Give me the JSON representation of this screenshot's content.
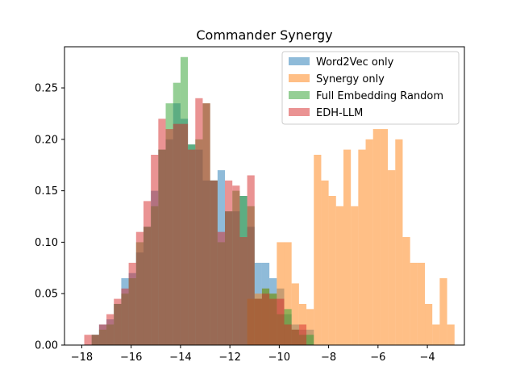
{
  "chart_data": {
    "type": "histogram",
    "title": "Commander Synergy",
    "xlabel": "",
    "ylabel": "",
    "xlim": [
      -18.7,
      -2.5
    ],
    "ylim": [
      0,
      0.29
    ],
    "xticks": [
      -18,
      -16,
      -14,
      -12,
      -10,
      -8,
      -6,
      -4
    ],
    "xtick_labels": [
      "−18",
      "−16",
      "−14",
      "−12",
      "−10",
      "−8",
      "−6",
      "−4"
    ],
    "yticks": [
      0.0,
      0.05,
      0.1,
      0.15,
      0.2,
      0.25
    ],
    "ytick_labels": [
      "0.00",
      "0.05",
      "0.10",
      "0.15",
      "0.20",
      "0.25"
    ],
    "grid": false,
    "legend_position": "top-right",
    "series": [
      {
        "name": "Word2Vec only",
        "color": "#1f77b4",
        "bins": [
          [
            -17.6,
            -17.3,
            0.01
          ],
          [
            -17.3,
            -17.0,
            0.02
          ],
          [
            -17.0,
            -16.7,
            0.025
          ],
          [
            -16.7,
            -16.4,
            0.04
          ],
          [
            -16.4,
            -16.1,
            0.065
          ],
          [
            -16.1,
            -15.8,
            0.07
          ],
          [
            -15.8,
            -15.5,
            0.09
          ],
          [
            -15.5,
            -15.2,
            0.115
          ],
          [
            -15.2,
            -14.9,
            0.15
          ],
          [
            -14.9,
            -14.6,
            0.19
          ],
          [
            -14.6,
            -14.3,
            0.2
          ],
          [
            -14.3,
            -14.0,
            0.235
          ],
          [
            -14.0,
            -13.7,
            0.22
          ],
          [
            -13.7,
            -13.4,
            0.195
          ],
          [
            -13.4,
            -13.1,
            0.19
          ],
          [
            -13.1,
            -12.8,
            0.16
          ],
          [
            -12.8,
            -12.5,
            0.16
          ],
          [
            -12.5,
            -12.2,
            0.17
          ],
          [
            -12.2,
            -11.9,
            0.13
          ],
          [
            -11.9,
            -11.6,
            0.13
          ],
          [
            -11.6,
            -11.3,
            0.145
          ],
          [
            -11.3,
            -11.0,
            0.115
          ],
          [
            -11.0,
            -10.7,
            0.08
          ],
          [
            -10.7,
            -10.4,
            0.08
          ],
          [
            -10.4,
            -10.1,
            0.065
          ],
          [
            -10.1,
            -9.8,
            0.055
          ],
          [
            -9.8,
            -9.5,
            0.03
          ],
          [
            -9.5,
            -9.2,
            0.02
          ],
          [
            -9.2,
            -8.9,
            0.015
          ],
          [
            -8.9,
            -8.6,
            0.015
          ]
        ]
      },
      {
        "name": "Synergy only",
        "color": "#ff7f0e",
        "bins": [
          [
            -11.3,
            -11.0,
            0.045
          ],
          [
            -11.0,
            -10.7,
            0.05
          ],
          [
            -10.7,
            -10.4,
            0.055
          ],
          [
            -10.4,
            -10.1,
            0.05
          ],
          [
            -10.1,
            -9.8,
            0.1
          ],
          [
            -9.8,
            -9.5,
            0.1
          ],
          [
            -9.5,
            -9.2,
            0.06
          ],
          [
            -9.2,
            -8.9,
            0.04
          ],
          [
            -8.9,
            -8.6,
            0.035
          ],
          [
            -8.6,
            -8.3,
            0.185
          ],
          [
            -8.3,
            -8.0,
            0.16
          ],
          [
            -8.0,
            -7.7,
            0.145
          ],
          [
            -7.7,
            -7.4,
            0.135
          ],
          [
            -7.4,
            -7.1,
            0.19
          ],
          [
            -7.1,
            -6.8,
            0.135
          ],
          [
            -6.8,
            -6.5,
            0.19
          ],
          [
            -6.5,
            -6.2,
            0.2
          ],
          [
            -6.2,
            -5.9,
            0.21
          ],
          [
            -5.9,
            -5.6,
            0.21
          ],
          [
            -5.6,
            -5.3,
            0.17
          ],
          [
            -5.3,
            -5.0,
            0.2
          ],
          [
            -5.0,
            -4.7,
            0.105
          ],
          [
            -4.7,
            -4.4,
            0.08
          ],
          [
            -4.4,
            -4.1,
            0.08
          ],
          [
            -4.1,
            -3.8,
            0.04
          ],
          [
            -3.8,
            -3.5,
            0.02
          ],
          [
            -3.5,
            -3.2,
            0.065
          ],
          [
            -3.2,
            -2.9,
            0.02
          ]
        ]
      },
      {
        "name": "Full Embedding Random",
        "color": "#2ca02c",
        "bins": [
          [
            -17.6,
            -17.3,
            0.01
          ],
          [
            -17.3,
            -17.0,
            0.015
          ],
          [
            -17.0,
            -16.7,
            0.02
          ],
          [
            -16.7,
            -16.4,
            0.04
          ],
          [
            -16.4,
            -16.1,
            0.05
          ],
          [
            -16.1,
            -15.8,
            0.065
          ],
          [
            -15.8,
            -15.5,
            0.1
          ],
          [
            -15.5,
            -15.2,
            0.115
          ],
          [
            -15.2,
            -14.9,
            0.135
          ],
          [
            -14.9,
            -14.6,
            0.19
          ],
          [
            -14.6,
            -14.3,
            0.235
          ],
          [
            -14.3,
            -14.0,
            0.255
          ],
          [
            -14.0,
            -13.7,
            0.28
          ],
          [
            -13.7,
            -13.4,
            0.195
          ],
          [
            -13.4,
            -13.1,
            0.2
          ],
          [
            -13.1,
            -12.8,
            0.235
          ],
          [
            -12.8,
            -12.5,
            0.16
          ],
          [
            -12.5,
            -12.2,
            0.1
          ],
          [
            -12.2,
            -11.9,
            0.13
          ],
          [
            -11.9,
            -11.6,
            0.15
          ],
          [
            -11.6,
            -11.3,
            0.145
          ],
          [
            -11.3,
            -11.0,
            0.135
          ],
          [
            -11.0,
            -10.7,
            0.045
          ],
          [
            -10.7,
            -10.4,
            0.055
          ],
          [
            -10.4,
            -10.1,
            0.05
          ],
          [
            -10.1,
            -9.8,
            0.03
          ],
          [
            -9.8,
            -9.5,
            0.035
          ],
          [
            -9.5,
            -9.2,
            0.015
          ],
          [
            -9.2,
            -8.9,
            0.01
          ],
          [
            -8.9,
            -8.6,
            0.01
          ]
        ]
      },
      {
        "name": "EDH-LLM",
        "color": "#d62728",
        "bins": [
          [
            -17.9,
            -17.6,
            0.01
          ],
          [
            -17.6,
            -17.3,
            0.01
          ],
          [
            -17.3,
            -17.0,
            0.02
          ],
          [
            -17.0,
            -16.7,
            0.03
          ],
          [
            -16.7,
            -16.4,
            0.045
          ],
          [
            -16.4,
            -16.1,
            0.055
          ],
          [
            -16.1,
            -15.8,
            0.08
          ],
          [
            -15.8,
            -15.5,
            0.11
          ],
          [
            -15.5,
            -15.2,
            0.14
          ],
          [
            -15.2,
            -14.9,
            0.185
          ],
          [
            -14.9,
            -14.6,
            0.22
          ],
          [
            -14.6,
            -14.3,
            0.21
          ],
          [
            -14.3,
            -14.0,
            0.215
          ],
          [
            -14.0,
            -13.7,
            0.215
          ],
          [
            -13.7,
            -13.4,
            0.19
          ],
          [
            -13.4,
            -13.1,
            0.24
          ],
          [
            -13.1,
            -12.8,
            0.235
          ],
          [
            -12.8,
            -12.5,
            0.16
          ],
          [
            -12.5,
            -12.2,
            0.11
          ],
          [
            -12.2,
            -11.9,
            0.16
          ],
          [
            -11.9,
            -11.6,
            0.155
          ],
          [
            -11.6,
            -11.3,
            0.105
          ],
          [
            -11.3,
            -11.0,
            0.165
          ],
          [
            -11.0,
            -10.7,
            0.045
          ],
          [
            -10.7,
            -10.4,
            0.05
          ],
          [
            -10.4,
            -10.1,
            0.045
          ],
          [
            -10.1,
            -9.8,
            0.045
          ],
          [
            -9.8,
            -9.5,
            0.02
          ],
          [
            -9.5,
            -9.2,
            0.015
          ],
          [
            -9.2,
            -8.9,
            0.02
          ]
        ]
      }
    ]
  }
}
